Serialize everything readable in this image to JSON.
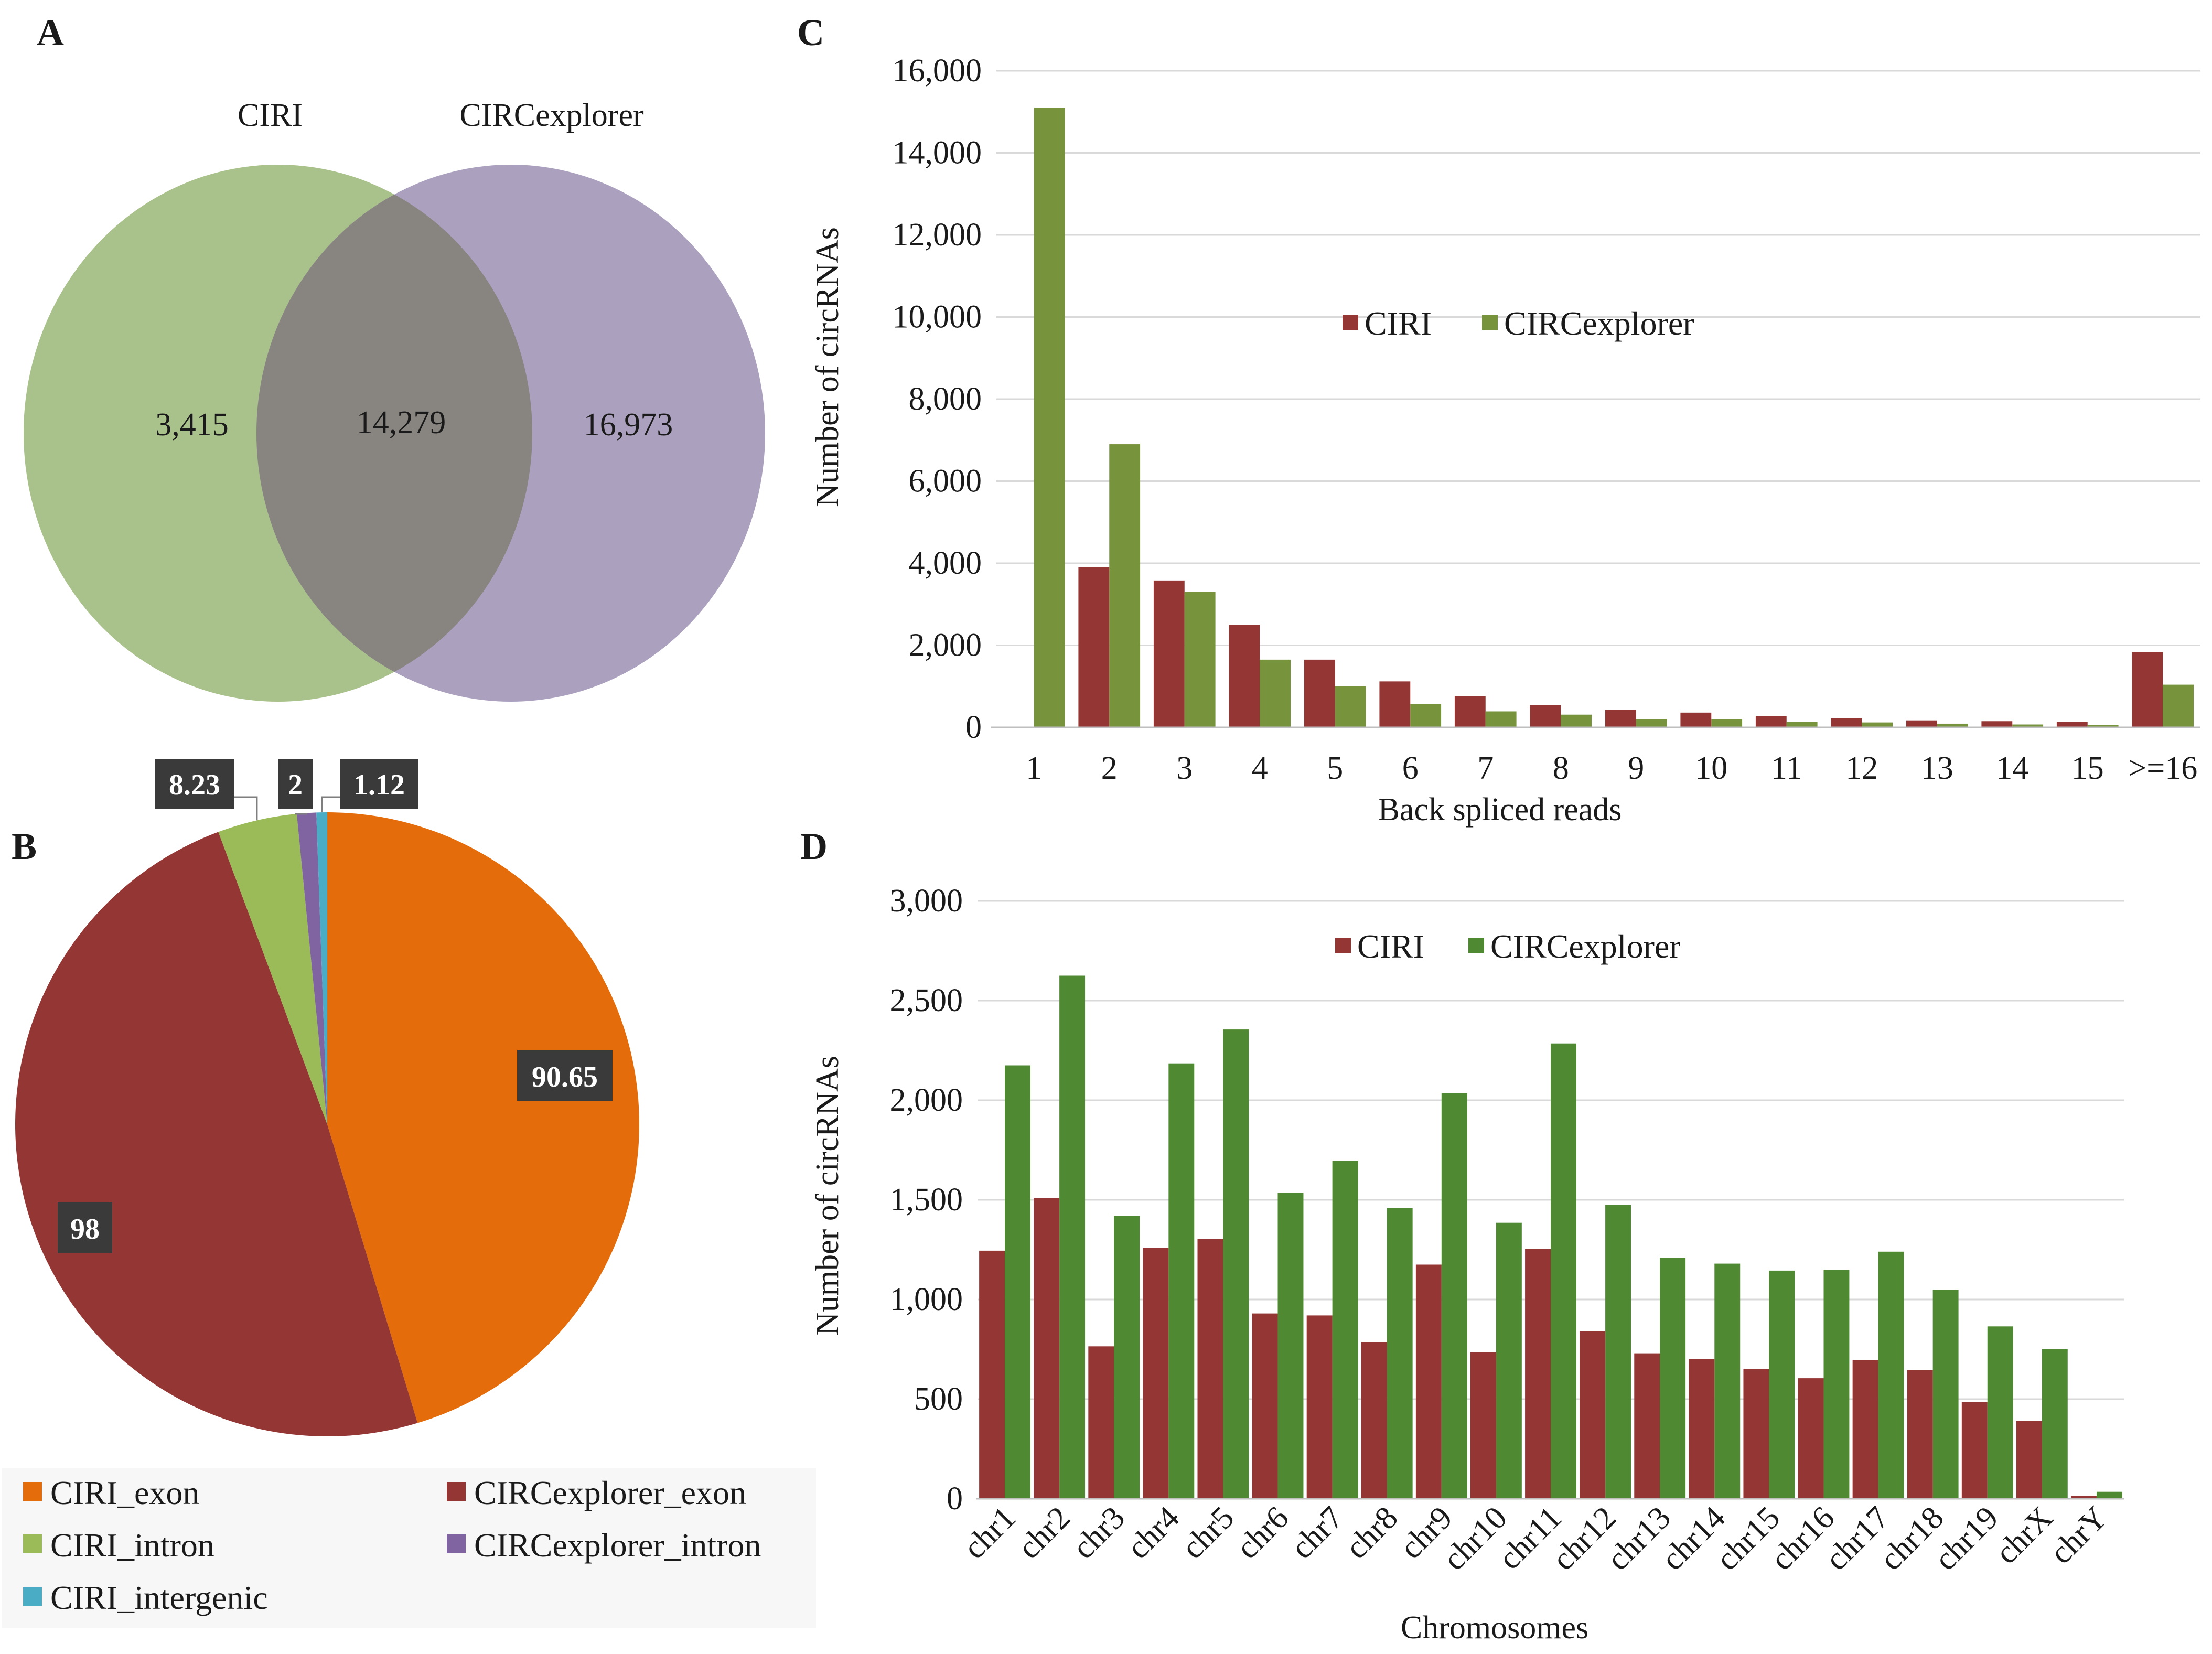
{
  "panel_letters": {
    "a": "A",
    "b": "B",
    "c": "C",
    "d": "D"
  },
  "colors": {
    "ciri_bar": "#943634",
    "circexplorer_bar_c": "#77933C",
    "circexplorer_bar_d": "#4F8A32",
    "venn_ciri": "#a9c18a",
    "venn_circexplorer": "#aba1bf",
    "venn_overlap": "#888480",
    "pie_ciri_exon": "#E46C0A",
    "pie_circexplorer_exon": "#943634",
    "pie_ciri_intron": "#9BBB59",
    "pie_circexplorer_intron": "#8064A2",
    "pie_ciri_intergenic": "#4BACC6",
    "label_box": "#3a3a3a",
    "grid": "#d9d9d9"
  },
  "chart_data": [
    {
      "id": "A",
      "type": "venn",
      "sets": [
        "CIRI",
        "CIRCexplorer"
      ],
      "regions": {
        "CIRI_only": "3,415",
        "both": "14,279",
        "CIRCexplorer_only": "16,973"
      },
      "values": {
        "CIRI_only": 3415,
        "both": 14279,
        "CIRCexplorer_only": 16973
      }
    },
    {
      "id": "B",
      "type": "pie",
      "slices": [
        {
          "name": "CIRI_exon",
          "value": 90.65,
          "label": "90.65"
        },
        {
          "name": "CIRCexplorer_exon",
          "value": 98,
          "label": "98"
        },
        {
          "name": "CIRI_intron",
          "value": 8.23,
          "label": "8.23"
        },
        {
          "name": "CIRCexplorer_intron",
          "value": 2,
          "label": "2"
        },
        {
          "name": "CIRI_intergenic",
          "value": 1.12,
          "label": "1.12"
        }
      ],
      "legend": [
        "CIRI_exon",
        "CIRCexplorer_exon",
        "CIRI_intron",
        "CIRCexplorer_intron",
        "CIRI_intergenic"
      ]
    },
    {
      "id": "C",
      "type": "bar",
      "xlabel": "Back spliced reads",
      "ylabel": "Number of circRNAs",
      "ylim": [
        0,
        16000
      ],
      "yticks": [
        0,
        2000,
        4000,
        6000,
        8000,
        10000,
        12000,
        14000,
        16000
      ],
      "ytick_labels": [
        "0",
        "2,000",
        "4,000",
        "6,000",
        "8,000",
        "10,000",
        "12,000",
        "14,000",
        "16,000"
      ],
      "categories": [
        "1",
        "2",
        "3",
        "4",
        "5",
        "6",
        "7",
        "8",
        "9",
        "10",
        "11",
        "12",
        "13",
        "14",
        "15",
        ">=16"
      ],
      "series": [
        {
          "name": "CIRI",
          "values": [
            0,
            3900,
            3580,
            2500,
            1650,
            1120,
            760,
            540,
            430,
            360,
            270,
            230,
            170,
            150,
            130,
            1830
          ]
        },
        {
          "name": "CIRCexplorer",
          "values": [
            15100,
            6900,
            3300,
            1650,
            1000,
            570,
            390,
            310,
            200,
            200,
            140,
            120,
            90,
            70,
            60,
            1040
          ]
        }
      ],
      "legend_position": "center"
    },
    {
      "id": "D",
      "type": "bar",
      "xlabel": "Chromosomes",
      "ylabel": "Number of circRNAs",
      "ylim": [
        0,
        3000
      ],
      "yticks": [
        0,
        500,
        1000,
        1500,
        2000,
        2500,
        3000
      ],
      "ytick_labels": [
        "0",
        "500",
        "1,000",
        "1,500",
        "2,000",
        "2,500",
        "3,000"
      ],
      "categories": [
        "chr1",
        "chr2",
        "chr3",
        "chr4",
        "chr5",
        "chr6",
        "chr7",
        "chr8",
        "chr9",
        "chr10",
        "chr11",
        "chr12",
        "chr13",
        "chr14",
        "chr15",
        "chr16",
        "chr17",
        "chr18",
        "chr19",
        "chrX",
        "chrY"
      ],
      "series": [
        {
          "name": "CIRI",
          "values": [
            1245,
            1510,
            765,
            1260,
            1305,
            930,
            920,
            785,
            1175,
            735,
            1255,
            840,
            730,
            700,
            650,
            605,
            695,
            645,
            485,
            390,
            15
          ]
        },
        {
          "name": "CIRCexplorer",
          "values": [
            2175,
            2625,
            1420,
            2185,
            2355,
            1535,
            1695,
            1460,
            2035,
            1385,
            2285,
            1475,
            1210,
            1180,
            1145,
            1150,
            1240,
            1050,
            865,
            750,
            35
          ]
        }
      ],
      "legend_position": "top-center"
    }
  ]
}
